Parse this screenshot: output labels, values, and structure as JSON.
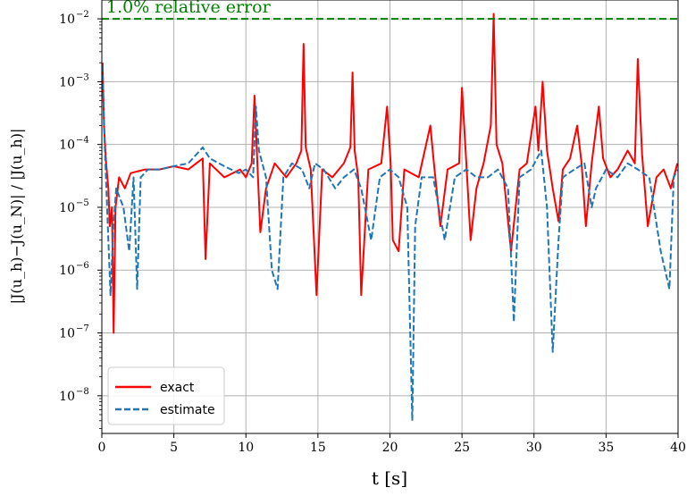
{
  "chart_data": {
    "type": "line",
    "title": "",
    "xlabel": "t [s]",
    "ylabel": "|J(u_h)−J(u_N)| / |J(u_h)|",
    "xlim": [
      0,
      40
    ],
    "ylim_log10": [
      -8.6,
      -1.7
    ],
    "yscale": "log",
    "grid": true,
    "legend_placement": "lower-left",
    "x_ticks": [
      0,
      5,
      10,
      15,
      20,
      25,
      30,
      35,
      40
    ],
    "x_tick_labels": [
      "0",
      "5",
      "10",
      "15",
      "20",
      "25",
      "30",
      "35",
      "40"
    ],
    "y_ticks_exp": [
      -8,
      -7,
      -6,
      -5,
      -4,
      -3,
      -2
    ],
    "y_tick_labels": [
      "10",
      "10",
      "10",
      "10",
      "10",
      "10",
      "10"
    ],
    "y_tick_exponents": [
      "−8",
      "−7",
      "−6",
      "−5",
      "−4",
      "−3",
      "−2"
    ],
    "threshold": {
      "value": 0.01,
      "label": "1.0% relative error",
      "color": "#008000"
    },
    "series": [
      {
        "name": "exact",
        "color": "#ff0000",
        "style": "solid",
        "points": [
          [
            0.05,
            0.002
          ],
          [
            0.15,
            0.0002
          ],
          [
            0.3,
            5e-05
          ],
          [
            0.45,
            2e-05
          ],
          [
            0.55,
            5e-06
          ],
          [
            0.7,
            1e-05
          ],
          [
            0.82,
            1e-07
          ],
          [
            0.95,
            1e-05
          ],
          [
            1.2,
            3e-05
          ],
          [
            1.6,
            2e-05
          ],
          [
            2.0,
            3.5e-05
          ],
          [
            3.0,
            4e-05
          ],
          [
            4.0,
            4e-05
          ],
          [
            5.0,
            4.5e-05
          ],
          [
            6.0,
            4e-05
          ],
          [
            7.0,
            6e-05
          ],
          [
            7.2,
            1.5e-06
          ],
          [
            7.5,
            5e-05
          ],
          [
            8.5,
            3e-05
          ],
          [
            9.6,
            4e-05
          ],
          [
            10.0,
            3e-05
          ],
          [
            10.4,
            5e-05
          ],
          [
            10.6,
            0.0006
          ],
          [
            10.8,
            5e-05
          ],
          [
            11.0,
            4e-06
          ],
          [
            11.4,
            2e-05
          ],
          [
            12.0,
            5e-05
          ],
          [
            12.8,
            3e-05
          ],
          [
            13.5,
            5e-05
          ],
          [
            13.85,
            8e-05
          ],
          [
            14.0,
            0.004
          ],
          [
            14.15,
            9e-05
          ],
          [
            14.5,
            4e-05
          ],
          [
            14.9,
            4e-07
          ],
          [
            15.3,
            4e-05
          ],
          [
            16.0,
            3e-05
          ],
          [
            16.8,
            5e-05
          ],
          [
            17.25,
            9e-05
          ],
          [
            17.4,
            0.0014
          ],
          [
            17.55,
            8e-05
          ],
          [
            17.8,
            3e-05
          ],
          [
            18.0,
            4e-07
          ],
          [
            18.5,
            4e-05
          ],
          [
            19.4,
            5e-05
          ],
          [
            19.8,
            0.0004
          ],
          [
            20.05,
            5e-05
          ],
          [
            20.2,
            3e-06
          ],
          [
            20.6,
            2e-06
          ],
          [
            21.0,
            4e-05
          ],
          [
            22.0,
            3e-05
          ],
          [
            22.8,
            0.0002
          ],
          [
            23.05,
            5e-05
          ],
          [
            23.5,
            5e-06
          ],
          [
            24.0,
            4e-05
          ],
          [
            24.8,
            5e-05
          ],
          [
            25.0,
            0.0008
          ],
          [
            25.3,
            5e-05
          ],
          [
            25.6,
            3e-06
          ],
          [
            26.0,
            2e-05
          ],
          [
            26.5,
            5e-05
          ],
          [
            27.0,
            0.0002
          ],
          [
            27.2,
            0.012
          ],
          [
            27.4,
            0.0001
          ],
          [
            27.8,
            5e-05
          ],
          [
            28.4,
            2e-06
          ],
          [
            29.0,
            4e-05
          ],
          [
            29.5,
            5e-05
          ],
          [
            30.1,
            0.0004
          ],
          [
            30.3,
            8e-05
          ],
          [
            30.6,
            0.001
          ],
          [
            30.9,
            8e-05
          ],
          [
            31.3,
            2e-05
          ],
          [
            31.7,
            6e-06
          ],
          [
            32.0,
            4e-05
          ],
          [
            32.5,
            6e-05
          ],
          [
            33.0,
            0.0002
          ],
          [
            33.3,
            5e-05
          ],
          [
            33.6,
            5e-06
          ],
          [
            34.0,
            5e-05
          ],
          [
            34.5,
            0.0004
          ],
          [
            34.8,
            6e-05
          ],
          [
            35.3,
            3e-05
          ],
          [
            35.8,
            4e-05
          ],
          [
            36.5,
            8e-05
          ],
          [
            37.0,
            5e-05
          ],
          [
            37.2,
            0.0023
          ],
          [
            37.5,
            7e-05
          ],
          [
            37.9,
            5e-06
          ],
          [
            38.5,
            3e-05
          ],
          [
            39.0,
            4e-05
          ],
          [
            39.5,
            2e-05
          ],
          [
            39.95,
            5e-05
          ]
        ]
      },
      {
        "name": "estimate",
        "color": "#1f77b4",
        "style": "dashed",
        "points": [
          [
            0.05,
            0.0018
          ],
          [
            0.2,
            0.0001
          ],
          [
            0.45,
            3e-06
          ],
          [
            0.6,
            4e-07
          ],
          [
            0.8,
            5e-06
          ],
          [
            1.0,
            2e-05
          ],
          [
            1.5,
            1e-05
          ],
          [
            1.9,
            2e-06
          ],
          [
            2.2,
            3e-05
          ],
          [
            2.45,
            5e-07
          ],
          [
            2.7,
            3e-05
          ],
          [
            3.2,
            4e-05
          ],
          [
            4.0,
            4e-05
          ],
          [
            5.0,
            4.5e-05
          ],
          [
            6.0,
            5e-05
          ],
          [
            7.0,
            9e-05
          ],
          [
            7.5,
            6e-05
          ],
          [
            8.5,
            4.5e-05
          ],
          [
            9.5,
            3.5e-05
          ],
          [
            10.0,
            4e-05
          ],
          [
            10.5,
            3e-05
          ],
          [
            10.7,
            0.0004
          ],
          [
            10.9,
            8e-05
          ],
          [
            11.4,
            3e-05
          ],
          [
            11.8,
            1e-06
          ],
          [
            12.2,
            5e-07
          ],
          [
            12.6,
            3e-05
          ],
          [
            13.2,
            5e-05
          ],
          [
            13.9,
            4e-05
          ],
          [
            14.4,
            2e-05
          ],
          [
            14.8,
            5e-05
          ],
          [
            15.4,
            4e-05
          ],
          [
            16.2,
            2e-05
          ],
          [
            16.8,
            3e-05
          ],
          [
            17.5,
            4e-05
          ],
          [
            18.0,
            2e-05
          ],
          [
            18.7,
            3e-06
          ],
          [
            19.3,
            3e-05
          ],
          [
            20.0,
            4e-05
          ],
          [
            20.6,
            3e-05
          ],
          [
            21.2,
            1e-05
          ],
          [
            21.55,
            4e-09
          ],
          [
            21.75,
            5e-06
          ],
          [
            22.2,
            3e-05
          ],
          [
            23.0,
            3e-05
          ],
          [
            23.8,
            3e-06
          ],
          [
            24.5,
            3e-05
          ],
          [
            25.3,
            4e-05
          ],
          [
            26.0,
            3e-05
          ],
          [
            26.8,
            3e-05
          ],
          [
            27.5,
            4e-05
          ],
          [
            28.2,
            2e-05
          ],
          [
            28.6,
            1.5e-07
          ],
          [
            29.0,
            3e-05
          ],
          [
            29.8,
            4e-05
          ],
          [
            30.5,
            8e-05
          ],
          [
            30.9,
            1e-05
          ],
          [
            31.3,
            5e-08
          ],
          [
            31.7,
            3e-06
          ],
          [
            32.0,
            3e-05
          ],
          [
            32.8,
            4e-05
          ],
          [
            33.5,
            5e-05
          ],
          [
            34.0,
            1e-05
          ],
          [
            34.3,
            2e-05
          ],
          [
            35.0,
            4e-05
          ],
          [
            35.8,
            3e-05
          ],
          [
            36.5,
            5e-05
          ],
          [
            37.2,
            4e-05
          ],
          [
            38.0,
            3e-05
          ],
          [
            38.8,
            2e-06
          ],
          [
            39.4,
            5e-07
          ],
          [
            39.7,
            3e-05
          ],
          [
            39.95,
            4e-05
          ]
        ]
      }
    ]
  }
}
